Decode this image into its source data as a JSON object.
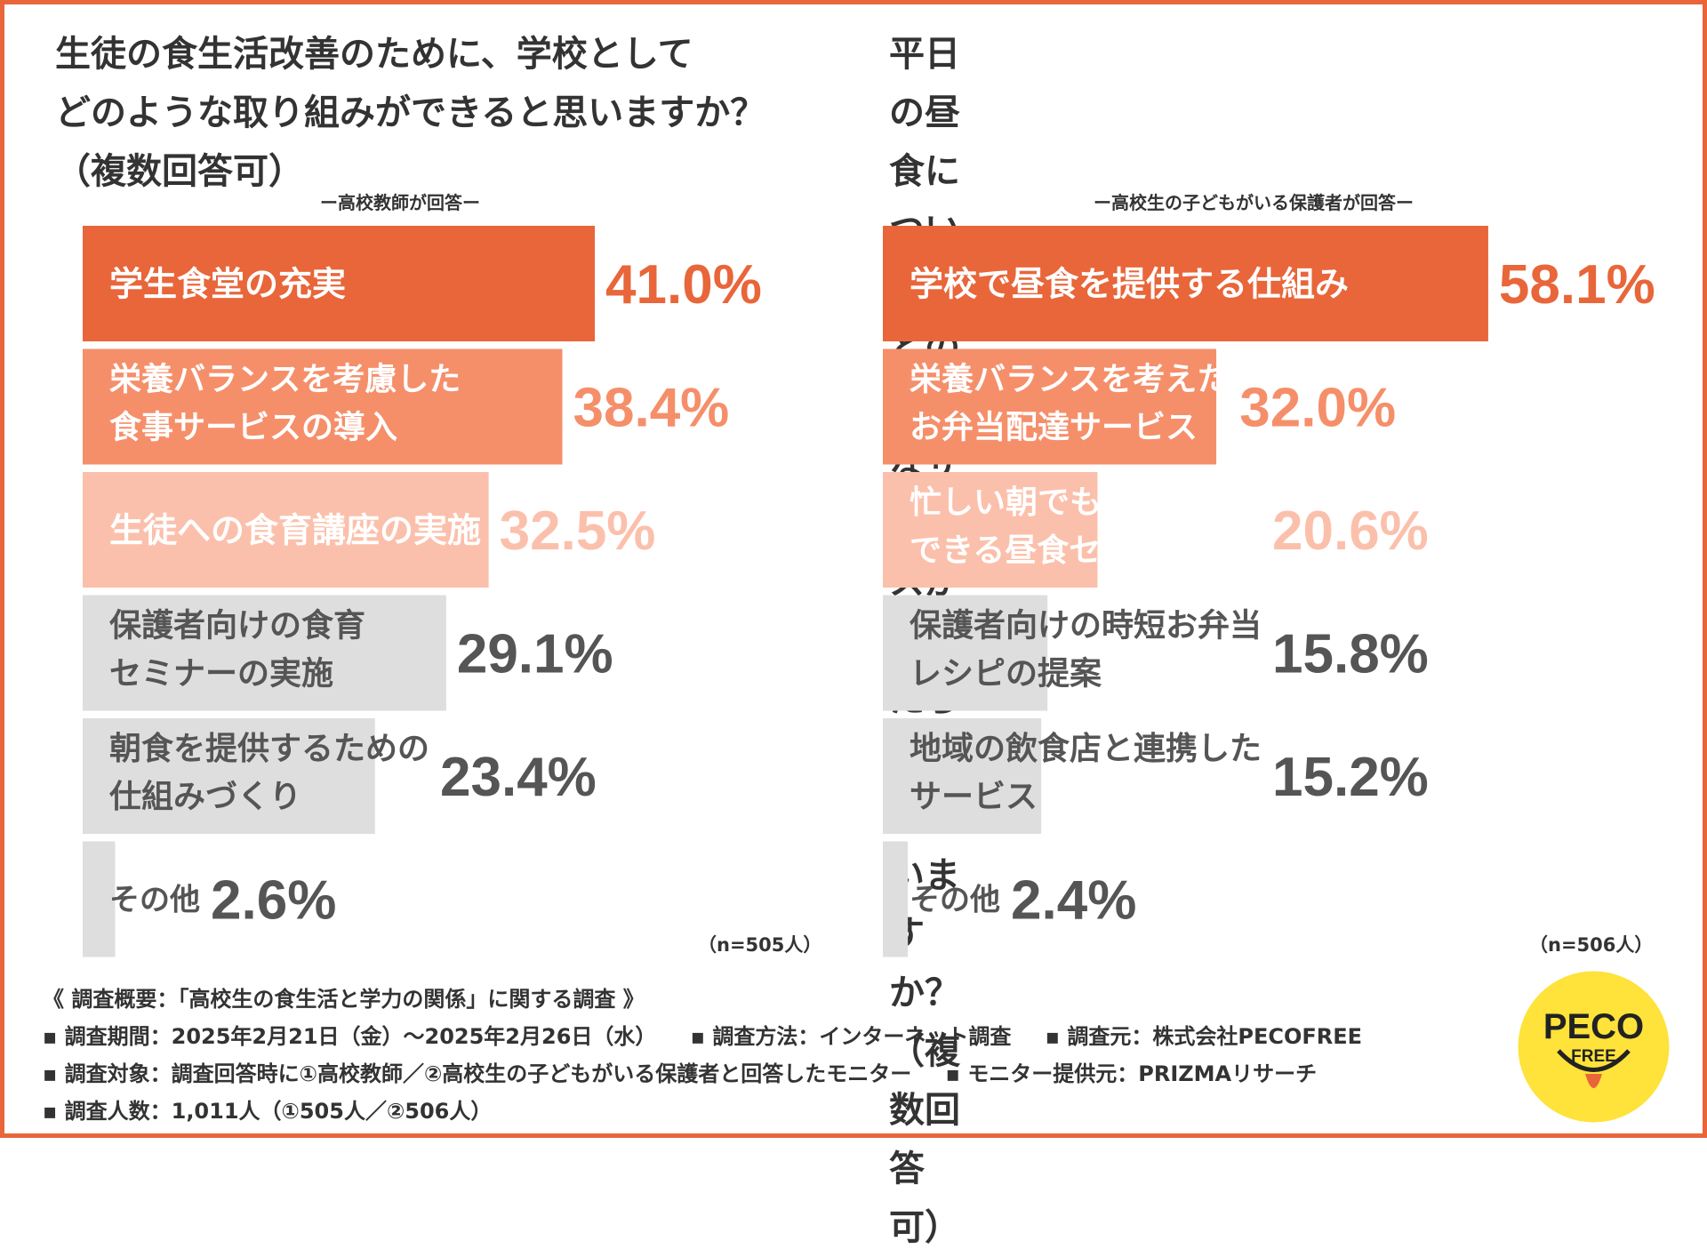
{
  "left": {
    "question": "生徒の食生活改善のために、学校として\nどのような取り組みができると思いますか？\n（複数回答可）",
    "respondent": "ー高校教師が回答ー",
    "n_label": "（n=505人）"
  },
  "right": {
    "question": "平日の昼食について、どのようなサービスが\nあったらよいと思いますか？（複数回答可）",
    "respondent": "ー高校生の子どもがいる保護者が回答ー",
    "n_label": "（n=506人）"
  },
  "chart_data": [
    {
      "type": "bar",
      "orientation": "horizontal",
      "categories": [
        "学生食堂の充実",
        "栄養バランスを考慮した\n食事サービスの導入",
        "生徒への食育講座の実施",
        "保護者向けの食育\nセミナーの実施",
        "朝食を提供するための\n仕組みづくり",
        "その他"
      ],
      "values": [
        41.0,
        38.4,
        32.5,
        29.1,
        23.4,
        2.6
      ],
      "value_labels": [
        "41.0%",
        "38.4%",
        "32.5%",
        "29.1%",
        "23.4%",
        "2.6%"
      ],
      "colors": [
        "#e8663a",
        "#f58f6a",
        "#fbc0ab",
        "#dedede",
        "#dedede",
        "#dedede"
      ],
      "label_colors": [
        "#ffffff",
        "#ffffff",
        "#ffffff",
        "#555555",
        "#555555",
        "#555555"
      ],
      "value_colors": [
        "#e8663a",
        "#f58f6a",
        "#fbc0ab",
        "#555555",
        "#555555",
        "#555555"
      ]
    },
    {
      "type": "bar",
      "orientation": "horizontal",
      "categories": [
        "学校で昼食を提供する仕組み",
        "栄養バランスを考えた\nお弁当配達サービス",
        "忙しい朝でも簡単に準備\nできる昼食セット",
        "保護者向けの時短お弁当\nレシピの提案",
        "地域の飲食店と連携した\nサービス",
        "その他"
      ],
      "values": [
        58.1,
        32.0,
        20.6,
        15.8,
        15.2,
        2.4
      ],
      "value_labels": [
        "58.1%",
        "32.0%",
        "20.6%",
        "15.8%",
        "15.2%",
        "2.4%"
      ],
      "colors": [
        "#e8663a",
        "#f58f6a",
        "#fbc0ab",
        "#dedede",
        "#dedede",
        "#dedede"
      ],
      "label_colors": [
        "#ffffff",
        "#ffffff",
        "#ffffff",
        "#555555",
        "#555555",
        "#555555"
      ],
      "value_colors": [
        "#e8663a",
        "#f58f6a",
        "#fbc0ab",
        "#555555",
        "#555555",
        "#555555"
      ]
    }
  ],
  "footer": {
    "title": "《 調査概要：「高校生の食生活と学力の関係」に関する調査 》",
    "period": "▪ 調査期間：2025年2月21日（金）～2025年2月26日（水）",
    "method": "▪ 調査方法：インターネット調査",
    "org": "▪ 調査元：株式会社PECOFREE",
    "target": "▪ 調査対象：調査回答時に①高校教師／②高校生の子どもがいる保護者と回答したモニター",
    "provider": "▪ モニター提供元：PRIZMAリサーチ",
    "count": "▪ 調査人数：1,011人（①505人／②506人）"
  },
  "logo": {
    "text_top": "PECO",
    "text_bottom": "FREE",
    "color": "#ffe23a"
  }
}
